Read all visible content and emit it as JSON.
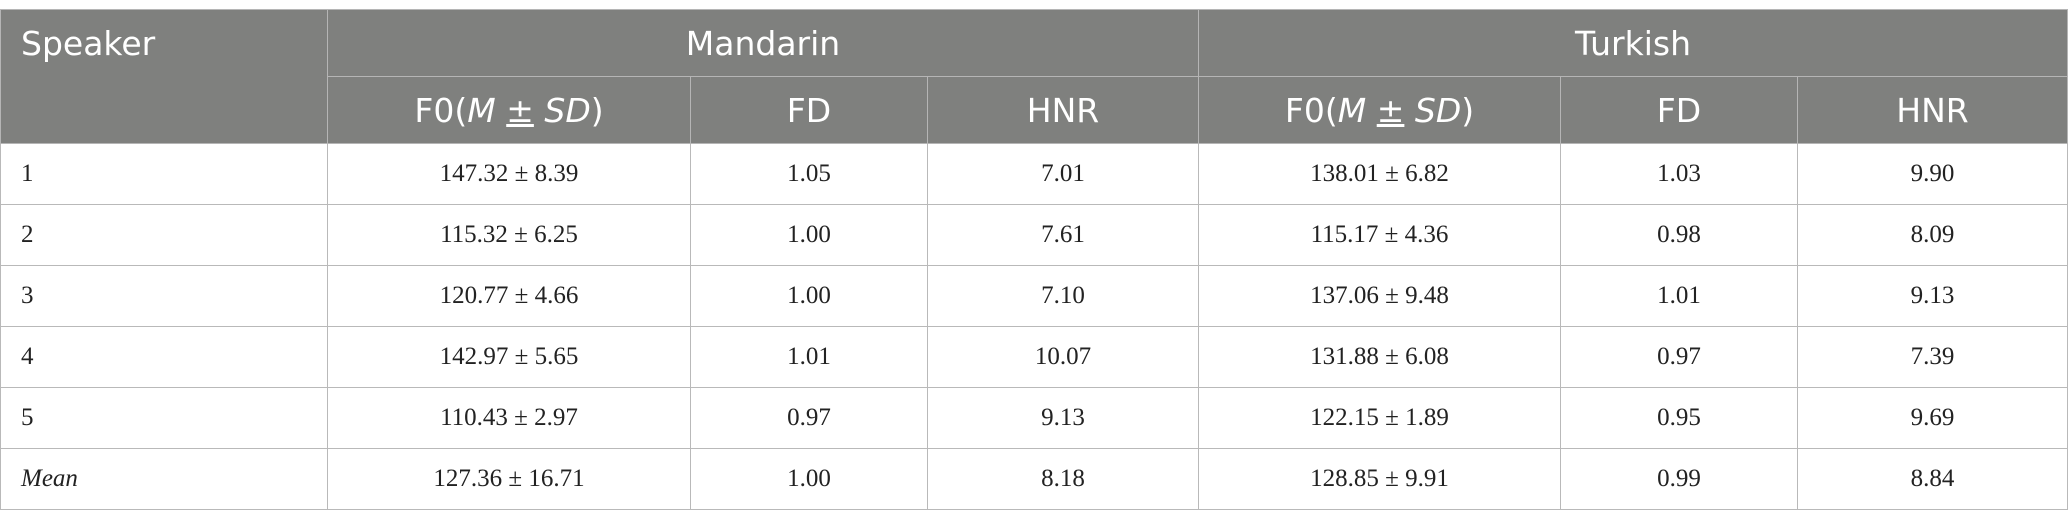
{
  "table": {
    "header": {
      "speaker": "Speaker",
      "groups": [
        {
          "name": "Mandarin",
          "columns": [
            {
              "prefix": "F0(",
              "m": "M",
              "pm": "±",
              "sd": "SD",
              "suffix": ")"
            },
            "FD",
            "HNR"
          ]
        },
        {
          "name": "Turkish",
          "columns": [
            {
              "prefix": "F0(",
              "m": "M",
              "pm": "±",
              "sd": "SD",
              "suffix": ")"
            },
            "FD",
            "HNR"
          ]
        }
      ]
    },
    "rows": [
      [
        "1",
        "147.32 ± 8.39",
        "1.05",
        "7.01",
        "138.01 ± 6.82",
        "1.03",
        "9.90"
      ],
      [
        "2",
        "115.32 ± 6.25",
        "1.00",
        "7.61",
        "115.17 ± 4.36",
        "0.98",
        "8.09"
      ],
      [
        "3",
        "120.77 ± 4.66",
        "1.00",
        "7.10",
        "137.06 ± 9.48",
        "1.01",
        "9.13"
      ],
      [
        "4",
        "142.97 ± 5.65",
        "1.01",
        "10.07",
        "131.88 ± 6.08",
        "0.97",
        "7.39"
      ],
      [
        "5",
        "110.43 ± 2.97",
        "0.97",
        "9.13",
        "122.15 ± 1.89",
        "0.95",
        "9.69"
      ],
      [
        "Mean",
        "127.36 ± 16.71",
        "1.00",
        "8.18",
        "128.85 ± 9.91",
        "0.99",
        "8.84"
      ]
    ]
  }
}
